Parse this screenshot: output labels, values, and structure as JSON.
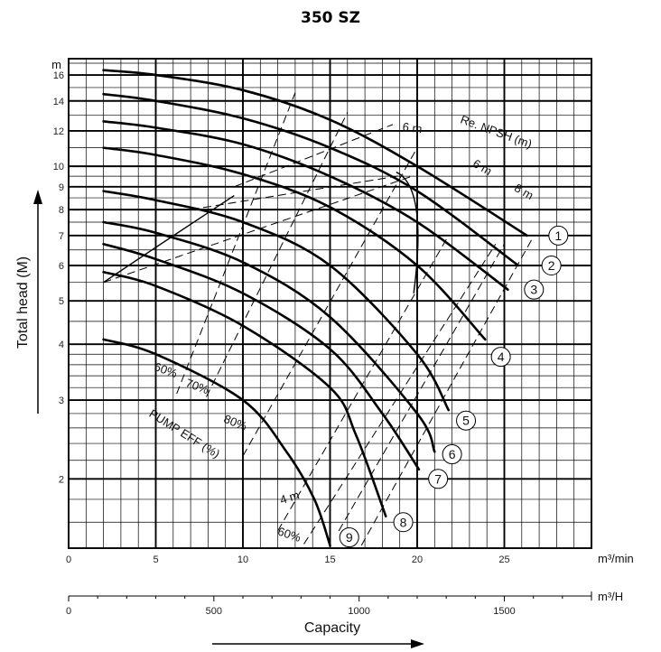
{
  "chart_data": {
    "type": "line",
    "title": "350 SZ",
    "ylabel": "Total head (M)",
    "y_unit": "m",
    "y_scale": "log",
    "ylim": [
      1.4,
      17.4
    ],
    "y_ticks": [
      2,
      3,
      4,
      5,
      6,
      7,
      8,
      9,
      10,
      12,
      14,
      16
    ],
    "x_unit_min": "m³/min",
    "xlim": [
      0,
      30
    ],
    "x_ticks": [
      0,
      5,
      10,
      15,
      20,
      25
    ],
    "secondary_axis": {
      "unit": "m³/H",
      "ticks": [
        0,
        500,
        1000,
        1500
      ]
    },
    "xlabel": "Capacity",
    "curves": [
      {
        "name": "1",
        "x": [
          2,
          5,
          10,
          15,
          20,
          26.3
        ],
        "y": [
          16.4,
          16,
          14.8,
          12.7,
          10,
          7
        ]
      },
      {
        "name": "2",
        "x": [
          2,
          5,
          10,
          15,
          20,
          25.8
        ],
        "y": [
          14.5,
          14,
          12.8,
          11,
          8.8,
          6
        ]
      },
      {
        "name": "3",
        "x": [
          2,
          5,
          10,
          15,
          20,
          25.2
        ],
        "y": [
          12.6,
          12.2,
          11.2,
          9.5,
          7.5,
          5.3
        ]
      },
      {
        "name": "4",
        "x": [
          2,
          5,
          10,
          15,
          20,
          23.9
        ],
        "y": [
          11,
          10.6,
          9.6,
          8.1,
          6,
          4.1
        ]
      },
      {
        "name": "5",
        "x": [
          2,
          5,
          10,
          15,
          20,
          21.8
        ],
        "y": [
          8.8,
          8.4,
          7.5,
          6,
          3.8,
          2.85
        ]
      },
      {
        "name": "6",
        "x": [
          2,
          5,
          10,
          15,
          20,
          21
        ],
        "y": [
          7.5,
          7.1,
          6.1,
          4.6,
          2.8,
          2.3
        ]
      },
      {
        "name": "7",
        "x": [
          2,
          5,
          10,
          15,
          18,
          20.1
        ],
        "y": [
          6.7,
          6.2,
          5.2,
          3.9,
          2.8,
          2.1
        ]
      },
      {
        "name": "8",
        "x": [
          2,
          5,
          10,
          15,
          16.5,
          18.2
        ],
        "y": [
          5.8,
          5.4,
          4.4,
          3.2,
          2.5,
          1.65
        ]
      },
      {
        "name": "9",
        "x": [
          2,
          5,
          10,
          12.5,
          14.1,
          15
        ],
        "y": [
          4.1,
          3.8,
          3,
          2.3,
          1.8,
          1.42
        ]
      }
    ],
    "npsh_label": "Re. NPSH (m)",
    "npsh_values": [
      "6 m",
      "6 m",
      "8 m",
      "4 m"
    ],
    "efficiency_label": "PUMP EFF (%)",
    "efficiency_values": [
      "60%",
      "70%",
      "80%",
      "60%"
    ],
    "grid": true
  }
}
